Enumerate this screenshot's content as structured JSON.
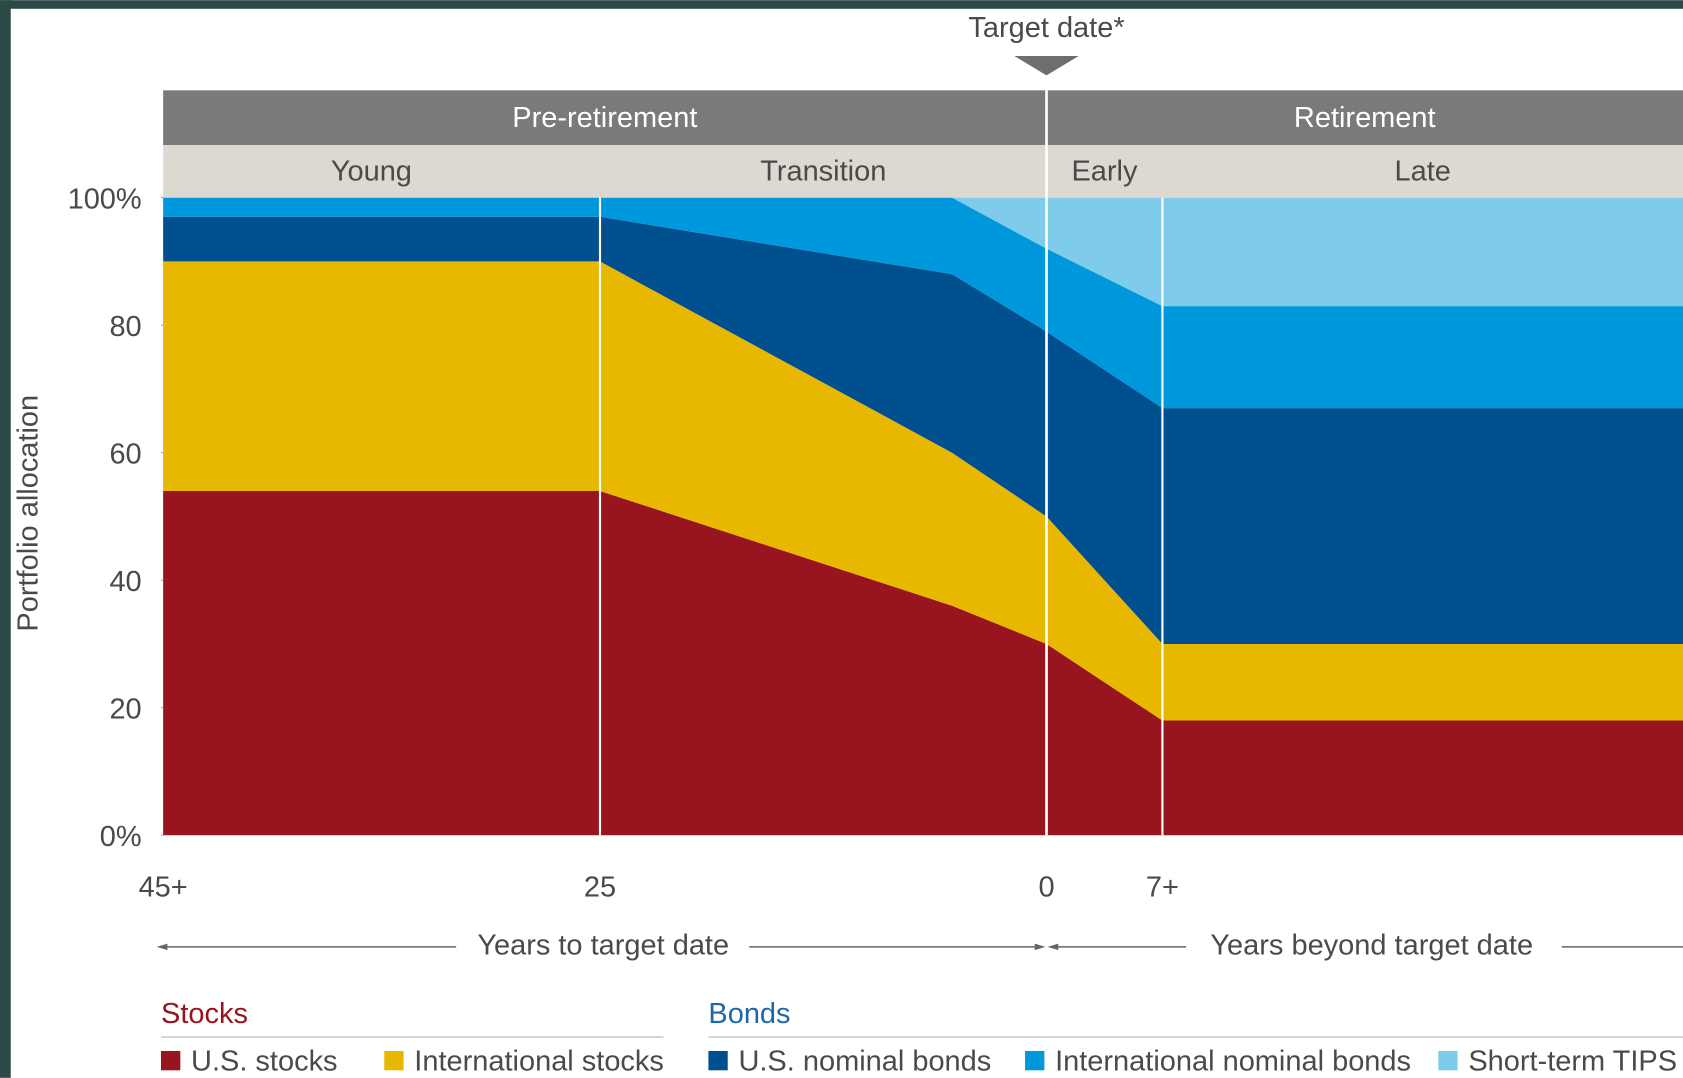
{
  "chart_data": {
    "type": "stacked_area",
    "annotation": "Target date*",
    "phases": [
      "Pre-retirement",
      "Retirement"
    ],
    "subphases": [
      "Young",
      "Transition",
      "Early",
      "Late"
    ],
    "ylabel": "Portfolio allocation",
    "xlabels": [
      "Years to target date",
      "Years beyond target date"
    ],
    "categories": [
      "45+",
      "25",
      null,
      "0",
      "7+",
      null
    ],
    "ylim": [
      0,
      100
    ],
    "yticks": [
      {
        "value": 0,
        "label": "0%"
      },
      20,
      40,
      60,
      80,
      {
        "value": 100,
        "label": "100%"
      }
    ],
    "legend_groups": [
      {
        "label": "Stocks",
        "color": "#98141e"
      },
      {
        "label": "Bonds",
        "color": "#1f68a8"
      }
    ],
    "series": [
      {
        "name": "U.S. stocks",
        "color": "#98141e",
        "values": [
          54,
          54,
          36,
          30,
          18,
          18
        ]
      },
      {
        "name": "International stocks",
        "color": "#e8b800",
        "values": [
          36,
          36,
          24,
          20,
          12,
          12
        ]
      },
      {
        "name": "U.S. nominal bonds",
        "color": "#004f8f",
        "values": [
          7,
          7,
          28,
          29,
          37,
          37
        ]
      },
      {
        "name": "International nominal bonds",
        "color": "#0098dc",
        "values": [
          3,
          3,
          12,
          13,
          16,
          16
        ]
      },
      {
        "name": "Short-term TIPS",
        "color": "#7fcbec",
        "values": [
          0,
          0,
          0,
          8,
          17,
          17
        ]
      }
    ]
  }
}
